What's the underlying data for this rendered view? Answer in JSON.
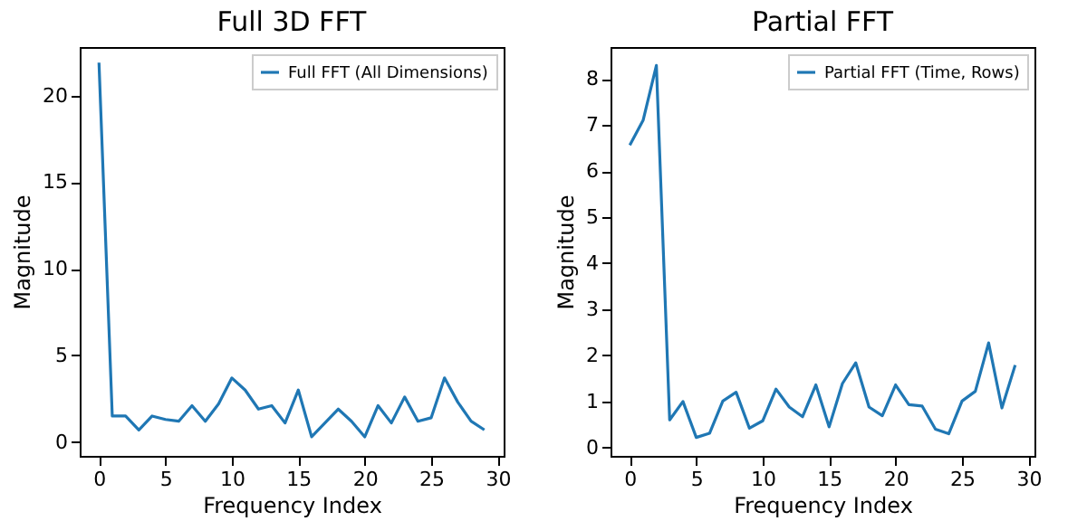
{
  "chart_data": [
    {
      "type": "line",
      "title": "Full 3D FFT",
      "xlabel": "Frequency Index",
      "ylabel": "Magnitude",
      "legend": "top right",
      "x": [
        0,
        1,
        2,
        3,
        4,
        5,
        6,
        7,
        8,
        9,
        10,
        11,
        12,
        13,
        14,
        15,
        16,
        17,
        18,
        19,
        20,
        21,
        22,
        23,
        24,
        25,
        26,
        27,
        28,
        29
      ],
      "series": [
        {
          "name": "Full FFT (All Dimensions)",
          "color": "#1f77b4",
          "values": [
            21.9,
            1.5,
            1.5,
            0.7,
            1.5,
            1.3,
            1.2,
            2.1,
            1.2,
            2.2,
            3.7,
            3.0,
            1.9,
            2.1,
            1.1,
            3.0,
            0.3,
            1.1,
            1.9,
            1.2,
            0.3,
            2.1,
            1.1,
            2.6,
            1.2,
            1.4,
            3.7,
            2.3,
            1.2,
            0.7
          ]
        }
      ],
      "xlim": [
        -1.45,
        30.45
      ],
      "xticks": [
        0,
        5,
        10,
        15,
        20,
        25,
        30
      ],
      "ylim": [
        -0.8,
        22.8
      ],
      "yticks": [
        0,
        5,
        10,
        15,
        20
      ],
      "grid": false
    },
    {
      "type": "line",
      "title": "Partial FFT",
      "xlabel": "Frequency Index",
      "ylabel": "Magnitude",
      "legend": "top right",
      "x": [
        0,
        1,
        2,
        3,
        4,
        5,
        6,
        7,
        8,
        9,
        10,
        11,
        12,
        13,
        14,
        15,
        16,
        17,
        18,
        19,
        20,
        21,
        22,
        23,
        24,
        25,
        26,
        27,
        28,
        29
      ],
      "series": [
        {
          "name": "Partial FFT (Time, Rows)",
          "color": "#1f77b4",
          "values": [
            6.56,
            7.1,
            8.29,
            0.6,
            1.0,
            0.22,
            0.31,
            1.01,
            1.2,
            0.42,
            0.58,
            1.27,
            0.88,
            0.67,
            1.36,
            0.45,
            1.39,
            1.84,
            0.88,
            0.69,
            1.36,
            0.93,
            0.9,
            0.4,
            0.3,
            1.01,
            1.22,
            2.27,
            0.86,
            1.79
          ]
        }
      ],
      "xlim": [
        -1.45,
        30.45
      ],
      "xticks": [
        0,
        5,
        10,
        15,
        20,
        25,
        30
      ],
      "ylim": [
        -0.18,
        8.69
      ],
      "yticks": [
        0,
        1,
        2,
        3,
        4,
        5,
        6,
        7,
        8
      ],
      "grid": false
    }
  ]
}
